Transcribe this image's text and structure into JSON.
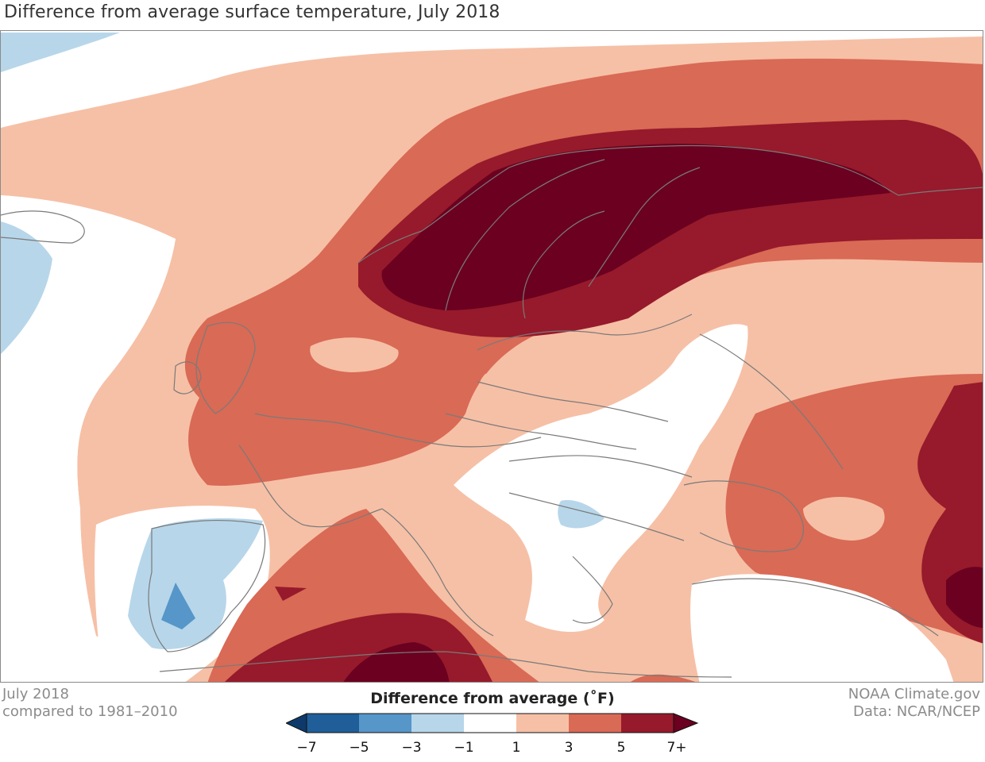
{
  "map": {
    "title": "Difference from average surface temperature, July 2018",
    "footnote_left": [
      "July 2018",
      "compared to 1981–2010"
    ],
    "credit": [
      "NOAA Climate.gov",
      "Data: NCAR/NCEP"
    ]
  },
  "legend": {
    "title": "Difference from average (˚F)",
    "ticks": [
      "−7",
      "−5",
      "−3",
      "−1",
      "1",
      "3",
      "5",
      "7+"
    ],
    "colors": [
      "#1f5e99",
      "#5696c9",
      "#b7d6ea",
      "#ffffff",
      "#f6c0a6",
      "#d96a55",
      "#961a2b",
      "#6b0020"
    ]
  },
  "colors": {
    "anom_1_3": "#f6c0a6",
    "anom_3_5": "#d96a55",
    "anom_5_7": "#961a2b",
    "anom_7p": "#6b0020",
    "anom_m1_m3": "#b7d6ea",
    "anom_m3_m5": "#5696c9",
    "borders": "#7a7a7a"
  }
}
